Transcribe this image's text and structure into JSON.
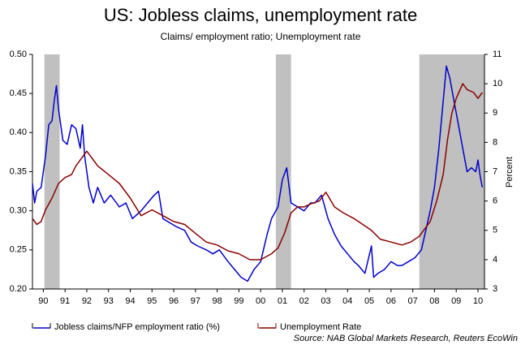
{
  "chart_data": {
    "type": "line",
    "title": "US: Jobless claims, unemployment rate",
    "subtitle": "Claims/ employment ratio; Unemployment rate",
    "y2_label": "Percent",
    "source": "Source: NAB Global Markets Research, Reuters EcoWin",
    "xlim": [
      1990,
      2010.8
    ],
    "xticks": [
      {
        "value": 1990.5,
        "label": "90"
      },
      {
        "value": 1991.5,
        "label": "91"
      },
      {
        "value": 1992.5,
        "label": "92"
      },
      {
        "value": 1993.5,
        "label": "93"
      },
      {
        "value": 1994.5,
        "label": "94"
      },
      {
        "value": 1995.5,
        "label": "95"
      },
      {
        "value": 1996.5,
        "label": "96"
      },
      {
        "value": 1997.5,
        "label": "97"
      },
      {
        "value": 1998.5,
        "label": "98"
      },
      {
        "value": 1999.5,
        "label": "99"
      },
      {
        "value": 2000.5,
        "label": "00"
      },
      {
        "value": 2001.5,
        "label": "01"
      },
      {
        "value": 2002.5,
        "label": "02"
      },
      {
        "value": 2003.5,
        "label": "03"
      },
      {
        "value": 2004.5,
        "label": "04"
      },
      {
        "value": 2005.5,
        "label": "05"
      },
      {
        "value": 2006.5,
        "label": "06"
      },
      {
        "value": 2007.5,
        "label": "07"
      },
      {
        "value": 2008.5,
        "label": "08"
      },
      {
        "value": 2009.5,
        "label": "09"
      },
      {
        "value": 2010.5,
        "label": "10"
      }
    ],
    "ylim": [
      0.2,
      0.5
    ],
    "yticks": [
      {
        "value": 0.2,
        "label": "0.20"
      },
      {
        "value": 0.25,
        "label": "0.25"
      },
      {
        "value": 0.3,
        "label": "0.30"
      },
      {
        "value": 0.35,
        "label": "0.35"
      },
      {
        "value": 0.4,
        "label": "0.40"
      },
      {
        "value": 0.45,
        "label": "0.45"
      },
      {
        "value": 0.5,
        "label": "0.50"
      }
    ],
    "y2lim": [
      3,
      11
    ],
    "y2ticks": [
      3,
      4,
      5,
      6,
      7,
      8,
      9,
      10,
      11
    ],
    "shading_color": "#c0c0c0",
    "shaded_periods": [
      [
        1990.55,
        1991.25
      ],
      [
        2001.2,
        2001.9
      ],
      [
        2007.8,
        2010.8
      ]
    ],
    "series": [
      {
        "name": "Jobless claims/NFP employment ratio (%)",
        "color": "#0000cc",
        "x": [
          1990.0,
          1990.1,
          1990.2,
          1990.4,
          1990.6,
          1990.75,
          1990.9,
          1991.0,
          1991.1,
          1991.2,
          1991.4,
          1991.6,
          1991.8,
          1992.0,
          1992.2,
          1992.3,
          1992.4,
          1992.6,
          1992.8,
          1993.0,
          1993.3,
          1993.6,
          1994.0,
          1994.3,
          1994.6,
          1995.0,
          1995.3,
          1995.6,
          1995.8,
          1996.0,
          1996.3,
          1996.6,
          1997.0,
          1997.3,
          1997.6,
          1998.0,
          1998.3,
          1998.6,
          1999.0,
          1999.3,
          1999.6,
          1999.9,
          2000.2,
          2000.5,
          2000.8,
          2001.0,
          2001.3,
          2001.5,
          2001.7,
          2001.9,
          2002.2,
          2002.5,
          2002.8,
          2003.0,
          2003.3,
          2003.6,
          2003.9,
          2004.2,
          2004.5,
          2004.8,
          2005.0,
          2005.3,
          2005.6,
          2005.7,
          2005.9,
          2006.2,
          2006.5,
          2006.8,
          2007.0,
          2007.3,
          2007.6,
          2007.9,
          2008.1,
          2008.3,
          2008.5,
          2008.7,
          2008.9,
          2009.05,
          2009.2,
          2009.4,
          2009.6,
          2009.8,
          2010.0,
          2010.2,
          2010.4,
          2010.5,
          2010.6,
          2010.7
        ],
        "values": [
          0.335,
          0.31,
          0.325,
          0.33,
          0.37,
          0.41,
          0.415,
          0.44,
          0.46,
          0.43,
          0.39,
          0.385,
          0.41,
          0.405,
          0.38,
          0.41,
          0.37,
          0.33,
          0.31,
          0.33,
          0.31,
          0.32,
          0.305,
          0.31,
          0.29,
          0.3,
          0.31,
          0.32,
          0.325,
          0.29,
          0.285,
          0.28,
          0.275,
          0.26,
          0.255,
          0.25,
          0.245,
          0.25,
          0.235,
          0.225,
          0.215,
          0.21,
          0.225,
          0.235,
          0.27,
          0.29,
          0.305,
          0.34,
          0.355,
          0.31,
          0.305,
          0.3,
          0.31,
          0.31,
          0.32,
          0.29,
          0.27,
          0.255,
          0.245,
          0.235,
          0.23,
          0.22,
          0.255,
          0.215,
          0.22,
          0.225,
          0.235,
          0.23,
          0.23,
          0.235,
          0.24,
          0.25,
          0.275,
          0.3,
          0.33,
          0.38,
          0.44,
          0.485,
          0.47,
          0.44,
          0.41,
          0.38,
          0.35,
          0.355,
          0.35,
          0.365,
          0.345,
          0.33
        ]
      },
      {
        "name": "Unemployment Rate",
        "color": "#8b0000",
        "axis": "y2",
        "x": [
          1990.0,
          1990.2,
          1990.4,
          1990.6,
          1990.9,
          1991.2,
          1991.5,
          1991.8,
          1992.0,
          1992.3,
          1992.5,
          1992.8,
          1993.0,
          1993.5,
          1994.0,
          1994.5,
          1995.0,
          1995.5,
          1996.0,
          1996.5,
          1997.0,
          1997.5,
          1998.0,
          1998.5,
          1999.0,
          1999.5,
          2000.0,
          2000.5,
          2001.0,
          2001.3,
          2001.6,
          2001.9,
          2002.2,
          2002.5,
          2002.8,
          2003.2,
          2003.5,
          2003.9,
          2004.3,
          2004.8,
          2005.2,
          2005.6,
          2006.0,
          2006.5,
          2007.0,
          2007.4,
          2007.8,
          2008.0,
          2008.3,
          2008.6,
          2008.9,
          2009.1,
          2009.3,
          2009.5,
          2009.8,
          2010.0,
          2010.3,
          2010.5,
          2010.7
        ],
        "values": [
          5.4,
          5.2,
          5.3,
          5.7,
          6.1,
          6.6,
          6.8,
          6.9,
          7.2,
          7.5,
          7.7,
          7.4,
          7.2,
          6.9,
          6.6,
          6.1,
          5.5,
          5.7,
          5.5,
          5.3,
          5.2,
          4.9,
          4.6,
          4.5,
          4.3,
          4.2,
          4.0,
          4.0,
          4.2,
          4.4,
          4.9,
          5.6,
          5.8,
          5.8,
          5.9,
          6.0,
          6.3,
          5.8,
          5.6,
          5.4,
          5.2,
          5.0,
          4.7,
          4.6,
          4.5,
          4.6,
          4.8,
          5.0,
          5.3,
          6.0,
          6.9,
          8.1,
          9.0,
          9.5,
          10.0,
          9.8,
          9.7,
          9.5,
          9.7
        ]
      }
    ]
  }
}
